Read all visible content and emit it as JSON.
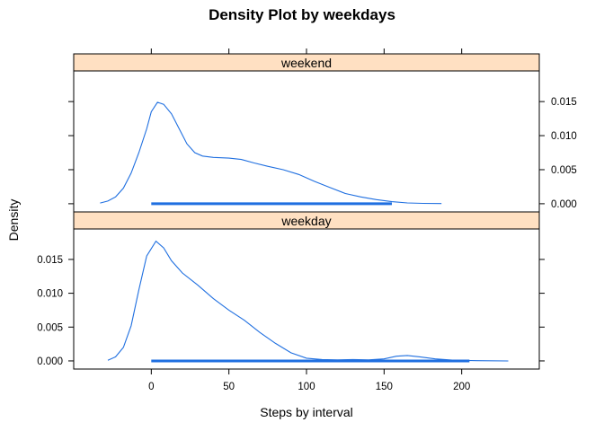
{
  "chart_data": {
    "type": "line",
    "title": "Density Plot by weekdays",
    "xlabel": "Steps by interval",
    "ylabel": "Density",
    "xlim": [
      -50,
      250
    ],
    "ylim": [
      -0.0012,
      0.0195
    ],
    "x_ticks": [
      0,
      50,
      100,
      150,
      200
    ],
    "x_tick_labels": [
      "0",
      "50",
      "100",
      "150",
      "200"
    ],
    "y_ticks": [
      0,
      0.005,
      0.01,
      0.015
    ],
    "y_tick_labels": [
      "0.000",
      "0.005",
      "0.010",
      "0.015"
    ],
    "panels": [
      {
        "strip": "weekend",
        "points": [
          [
            -33,
            0.0001
          ],
          [
            -28,
            0.0004
          ],
          [
            -23,
            0.001
          ],
          [
            -18,
            0.0023
          ],
          [
            -13,
            0.0045
          ],
          [
            -8,
            0.0075
          ],
          [
            -3,
            0.011
          ],
          [
            0,
            0.0135
          ],
          [
            4,
            0.0149
          ],
          [
            8,
            0.0146
          ],
          [
            13,
            0.0132
          ],
          [
            18,
            0.011
          ],
          [
            23,
            0.0088
          ],
          [
            28,
            0.0075
          ],
          [
            33,
            0.007
          ],
          [
            40,
            0.0068
          ],
          [
            50,
            0.0067
          ],
          [
            58,
            0.0065
          ],
          [
            66,
            0.006
          ],
          [
            75,
            0.0055
          ],
          [
            85,
            0.005
          ],
          [
            95,
            0.0043
          ],
          [
            105,
            0.0033
          ],
          [
            115,
            0.0024
          ],
          [
            125,
            0.0015
          ],
          [
            135,
            0.001
          ],
          [
            145,
            0.0006
          ],
          [
            155,
            0.0003
          ],
          [
            165,
            0.00012
          ],
          [
            175,
            5e-05
          ],
          [
            187,
            2e-05
          ]
        ],
        "rug_range": [
          0,
          155
        ],
        "rug_value": 0
      },
      {
        "strip": "weekday",
        "points": [
          [
            -28,
            0.0001
          ],
          [
            -23,
            0.0006
          ],
          [
            -18,
            0.002
          ],
          [
            -13,
            0.0052
          ],
          [
            -8,
            0.0105
          ],
          [
            -3,
            0.0155
          ],
          [
            3,
            0.0177
          ],
          [
            8,
            0.0167
          ],
          [
            13,
            0.0148
          ],
          [
            20,
            0.013
          ],
          [
            30,
            0.0112
          ],
          [
            40,
            0.0092
          ],
          [
            50,
            0.0075
          ],
          [
            60,
            0.006
          ],
          [
            70,
            0.0042
          ],
          [
            80,
            0.0026
          ],
          [
            90,
            0.0012
          ],
          [
            100,
            0.0004
          ],
          [
            110,
            0.0002
          ],
          [
            120,
            0.00015
          ],
          [
            130,
            0.0002
          ],
          [
            140,
            0.00015
          ],
          [
            150,
            0.0003
          ],
          [
            158,
            0.0007
          ],
          [
            165,
            0.0008
          ],
          [
            173,
            0.0006
          ],
          [
            183,
            0.0003
          ],
          [
            195,
            0.0001
          ],
          [
            210,
            3e-05
          ],
          [
            230,
            0
          ]
        ],
        "rug_range": [
          0,
          205
        ],
        "rug_value": 0
      }
    ]
  }
}
